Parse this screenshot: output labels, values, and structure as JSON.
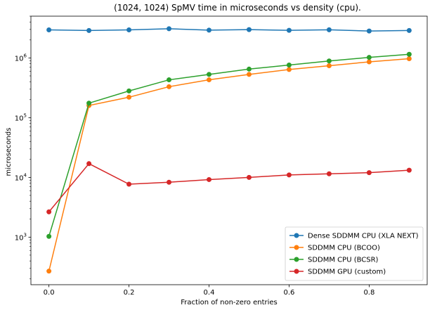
{
  "chart_data": {
    "type": "line",
    "title": "(1024, 1024) SpMV time in microseconds vs density (cpu).",
    "xlabel": "Fraction of non-zero entries",
    "ylabel": "microseconds",
    "yscale": "log",
    "xlim": [
      -0.045,
      0.945
    ],
    "ylim": [
      160,
      5000000
    ],
    "xticks": [
      0.0,
      0.2,
      0.4,
      0.6,
      0.8
    ],
    "xtick_labels": [
      "0.0",
      "0.2",
      "0.4",
      "0.6",
      "0.8"
    ],
    "yticks": [
      1000,
      10000,
      100000,
      1000000
    ],
    "ytick_labels": [
      {
        "base": "10",
        "exp": "3"
      },
      {
        "base": "10",
        "exp": "4"
      },
      {
        "base": "10",
        "exp": "5"
      },
      {
        "base": "10",
        "exp": "6"
      }
    ],
    "grid": false,
    "legend_position": "lower-right",
    "x": [
      0.0,
      0.1,
      0.2,
      0.3,
      0.4,
      0.5,
      0.6,
      0.7,
      0.8,
      0.9
    ],
    "series": [
      {
        "name": "Dense SDDMM CPU (XLA NEXT)",
        "color": "#1f77b4",
        "values": [
          2950000,
          2880000,
          2950000,
          3080000,
          2920000,
          2980000,
          2900000,
          2960000,
          2820000,
          2880000
        ]
      },
      {
        "name": "SDDMM CPU (BCOO)",
        "color": "#ff7f0e",
        "values": [
          270,
          160000,
          220000,
          330000,
          430000,
          530000,
          640000,
          740000,
          860000,
          970000
        ]
      },
      {
        "name": "SDDMM CPU (BCSR)",
        "color": "#2ca02c",
        "values": [
          1030,
          175000,
          280000,
          430000,
          530000,
          650000,
          760000,
          890000,
          1020000,
          1150000
        ]
      },
      {
        "name": "SDDMM GPU (custom)",
        "color": "#d62728",
        "values": [
          2650,
          17000,
          7700,
          8300,
          9200,
          10000,
          11000,
          11500,
          12000,
          13200
        ]
      }
    ]
  }
}
